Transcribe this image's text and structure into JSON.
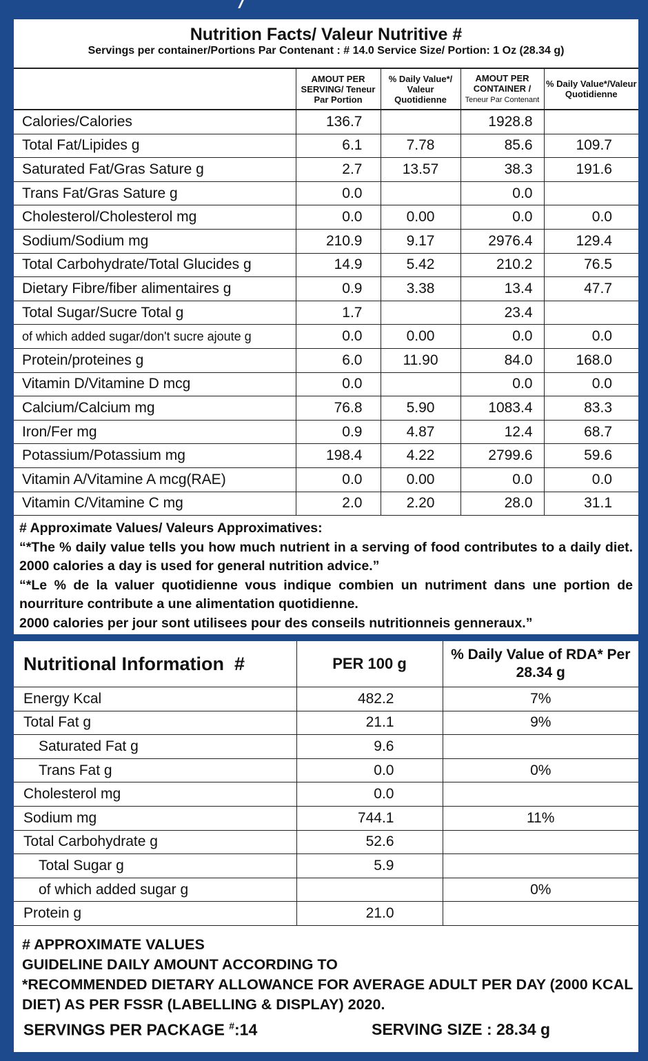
{
  "nutrition_facts": {
    "title": "Nutrition Facts/ Valeur Nutritive #",
    "subtitle": "Servings per container/Portions Par Contenant : # 14.0 Service Size/ Portion: 1 Oz (28.34 g)",
    "headers": {
      "serving": "AMOUT PER SERVING/ Teneur Par Portion",
      "dv_serving": "% Daily Value*/ Valeur Quotidienne",
      "container_main": "AMOUT PER CONTAINER /",
      "container_sub": "Teneur Par Contenant",
      "dv_container": "% Daily Value*/Valeur Quotidienne"
    },
    "rows": [
      {
        "name": "Calories/Calories",
        "serving": "136.7",
        "dv_serving": "",
        "container": "1928.8",
        "dv_container": ""
      },
      {
        "name": "Total Fat/Lipides g",
        "serving": "6.1",
        "dv_serving": "7.78",
        "container": "85.6",
        "dv_container": "109.7"
      },
      {
        "name": "Saturated Fat/Gras Sature g",
        "serving": "2.7",
        "dv_serving": "13.57",
        "container": "38.3",
        "dv_container": "191.6"
      },
      {
        "name": "Trans Fat/Gras Sature g",
        "serving": "0.0",
        "dv_serving": "",
        "container": "0.0",
        "dv_container": ""
      },
      {
        "name": "Cholesterol/Cholesterol mg",
        "serving": "0.0",
        "dv_serving": "0.00",
        "container": "0.0",
        "dv_container": "0.0"
      },
      {
        "name": "Sodium/Sodium mg",
        "serving": "210.9",
        "dv_serving": "9.17",
        "container": "2976.4",
        "dv_container": "129.4"
      },
      {
        "name": "Total Carbohydrate/Total Glucides g",
        "serving": "14.9",
        "dv_serving": "5.42",
        "container": "210.2",
        "dv_container": "76.5"
      },
      {
        "name": "Dietary Fibre/fiber alimentaires g",
        "serving": "0.9",
        "dv_serving": "3.38",
        "container": "13.4",
        "dv_container": "47.7"
      },
      {
        "name": "Total Sugar/Sucre Total g",
        "serving": "1.7",
        "dv_serving": "",
        "container": "23.4",
        "dv_container": ""
      },
      {
        "name": "of which added sugar/don't sucre ajoute g",
        "serving": "0.0",
        "dv_serving": "0.00",
        "container": "0.0",
        "dv_container": "0.0"
      },
      {
        "name": "Protein/proteines g",
        "serving": "6.0",
        "dv_serving": "11.90",
        "container": "84.0",
        "dv_container": "168.0"
      },
      {
        "name": "Vitamin D/Vitamine D mcg",
        "serving": "0.0",
        "dv_serving": "",
        "container": "0.0",
        "dv_container": "0.0"
      },
      {
        "name": "Calcium/Calcium mg",
        "serving": "76.8",
        "dv_serving": "5.90",
        "container": "1083.4",
        "dv_container": "83.3"
      },
      {
        "name": "Iron/Fer mg",
        "serving": "0.9",
        "dv_serving": "4.87",
        "container": "12.4",
        "dv_container": "68.7"
      },
      {
        "name": "Potassium/Potassium mg",
        "serving": "198.4",
        "dv_serving": "4.22",
        "container": "2799.6",
        "dv_container": "59.6"
      },
      {
        "name": "Vitamin A/Vitamine A mcg(RAE)",
        "serving": "0.0",
        "dv_serving": "0.00",
        "container": "0.0",
        "dv_container": "0.0"
      },
      {
        "name": "Vitamin C/Vitamine C mg",
        "serving": "2.0",
        "dv_serving": "2.20",
        "container": "28.0",
        "dv_container": "31.1"
      }
    ],
    "notes": [
      "# Approximate Values/ Valeurs Approximatives:",
      "“*The % daily value tells you how much nutrient in a serving of food contributes to a daily diet. 2000 calories a day is used for general nutrition advice.”",
      "“*Le % de la valuer quotidienne vous indique combien un nutriment dans une portion de nourriture contribute a une alimentation quotidienne.",
      "2000 calories per jour sont utilisees pour des conseils nutritionneis genneraux.”"
    ]
  },
  "nutritional_information": {
    "headers": {
      "name": "Nutritional Information  #",
      "per100": "PER 100 g",
      "dv": "% Daily Value of RDA* Per 28.34 g"
    },
    "rows": [
      {
        "name": "Energy Kcal",
        "per100": "482.2",
        "dv": "7%"
      },
      {
        "name": "Total Fat g",
        "per100": "21.1",
        "dv": "9%"
      },
      {
        "name": "Saturated Fat g",
        "per100": "9.6",
        "dv": ""
      },
      {
        "name": "Trans Fat g",
        "per100": "0.0",
        "dv": "0%"
      },
      {
        "name": "Cholesterol mg",
        "per100": "0.0",
        "dv": ""
      },
      {
        "name": "Sodium mg",
        "per100": "744.1",
        "dv": "11%"
      },
      {
        "name": "Total Carbohydrate g",
        "per100": "52.6",
        "dv": ""
      },
      {
        "name": "Total Sugar g",
        "per100": "5.9",
        "dv": ""
      },
      {
        "name": "of which added sugar g",
        "per100": "",
        "dv": "0%"
      },
      {
        "name": "Protein g",
        "per100": "21.0",
        "dv": ""
      }
    ],
    "notes": [
      "# APPROXIMATE VALUES",
      "GUIDELINE DAILY AMOUNT ACCORDING TO",
      "*RECOMMENDED DIETARY ALLOWANCE FOR AVERAGE ADULT PER DAY (2000 KCAL DIET) AS PER FSSR (LABELLING & DISPLAY) 2020."
    ],
    "servings_label": "SERVINGS PER PACKAGE",
    "servings_hash": "#",
    "servings_value": ":14",
    "serving_size": "SERVING SIZE : 28.34 g"
  },
  "colors": {
    "background": "#1d4a8c",
    "panel": "#ffffff",
    "rule": "#222222"
  }
}
